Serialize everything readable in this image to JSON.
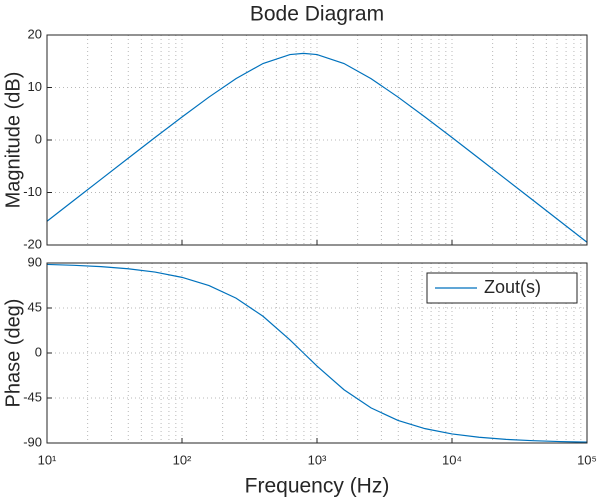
{
  "chart_data": [
    {
      "type": "line",
      "title": "Bode Diagram",
      "ylabel": "Magnitude (dB)",
      "xscale": "log",
      "grid": true,
      "xlim": [
        10,
        100000
      ],
      "xticks": [
        10,
        100,
        1000,
        10000,
        100000
      ],
      "xminorticks": [
        20,
        30,
        40,
        50,
        60,
        70,
        80,
        90,
        200,
        300,
        400,
        500,
        600,
        700,
        800,
        900,
        2000,
        3000,
        4000,
        5000,
        6000,
        7000,
        8000,
        9000,
        20000,
        30000,
        40000,
        50000,
        60000,
        70000,
        80000,
        90000
      ],
      "ylim": [
        -20,
        20
      ],
      "yticks": [
        -20,
        -10,
        0,
        10,
        20
      ],
      "x": [
        10,
        15.85,
        25.12,
        39.81,
        63.1,
        100,
        158.5,
        251.2,
        398.1,
        631,
        794,
        1000,
        1585,
        2512,
        3981,
        6310,
        10000,
        15849,
        25119,
        39811,
        63096,
        100000
      ],
      "series": [
        {
          "color": "#0072bd",
          "values": [
            -15.48,
            -11.48,
            -7.49,
            -3.5,
            0.47,
            4.38,
            8.18,
            11.69,
            14.57,
            16.27,
            16.5,
            16.27,
            14.57,
            11.69,
            8.18,
            4.38,
            0.47,
            -3.5,
            -7.49,
            -11.48,
            -15.48,
            -19.48
          ]
        }
      ]
    },
    {
      "type": "line",
      "xlabel": "Frequency  (Hz)",
      "ylabel": "Phase (deg)",
      "xscale": "log",
      "grid": true,
      "legend": "upper right",
      "xlim": [
        10,
        100000
      ],
      "xticks": [
        {
          "value": 10,
          "label": "10¹"
        },
        {
          "value": 100,
          "label": "10²"
        },
        {
          "value": 1000,
          "label": "10³"
        },
        {
          "value": 10000,
          "label": "10⁴"
        },
        {
          "value": 100000,
          "label": "10⁵"
        }
      ],
      "xminorticks": [
        20,
        30,
        40,
        50,
        60,
        70,
        80,
        90,
        200,
        300,
        400,
        500,
        600,
        700,
        800,
        900,
        2000,
        3000,
        4000,
        5000,
        6000,
        7000,
        8000,
        9000,
        20000,
        30000,
        40000,
        50000,
        60000,
        70000,
        80000,
        90000
      ],
      "ylim": [
        -90,
        90
      ],
      "yticks": [
        -90,
        -45,
        0,
        45,
        90
      ],
      "x": [
        10,
        15.85,
        25.12,
        39.81,
        63.1,
        100,
        158.5,
        251.2,
        398.1,
        631,
        794,
        1000,
        1585,
        2512,
        3981,
        6310,
        10000,
        15849,
        25119,
        39811,
        63096,
        100000
      ],
      "series": [
        {
          "name": "Zout(s)",
          "color": "#0072bd",
          "values": [
            88.56,
            87.71,
            86.38,
            84.26,
            80.92,
            75.65,
            67.44,
            54.9,
            36.76,
            13.08,
            0,
            -13.08,
            -36.76,
            -54.9,
            -67.44,
            -75.65,
            -80.92,
            -84.26,
            -86.38,
            -87.71,
            -88.56,
            -89.09
          ]
        }
      ]
    }
  ]
}
